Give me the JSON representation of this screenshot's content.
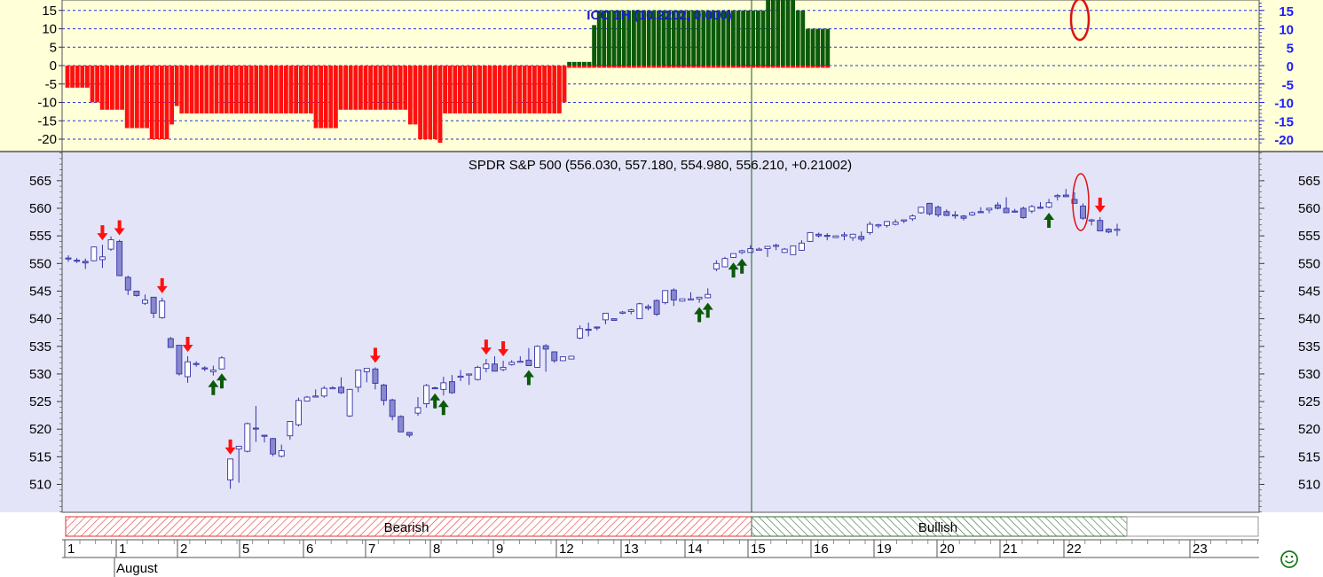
{
  "chart_data": [
    {
      "type": "bar",
      "title": "ICC 1H (10.2202, 0.000)",
      "ylim": [
        -22,
        17
      ],
      "yticks": [
        15,
        10,
        5,
        0,
        -5,
        -10,
        -15,
        -20
      ],
      "right_ticks": [
        "15",
        "10",
        "5",
        "0",
        "-5",
        "-10",
        "-15",
        "-20"
      ],
      "left_ticks": [
        "15",
        "10",
        "5",
        "0",
        "-5",
        "-10",
        "-15",
        "-20"
      ],
      "grid": true,
      "colors": {
        "negative": "#ff1010",
        "positive": "#0a5a0a",
        "background": "#ffffd8"
      },
      "values": [
        -6,
        -6,
        -6,
        -6,
        -6,
        -10,
        -10,
        -12,
        -12,
        -12,
        -12,
        -12,
        -17,
        -17,
        -17,
        -17,
        -17,
        -20,
        -20,
        -20,
        -20,
        -16,
        -11,
        -13,
        -13,
        -13,
        -13,
        -13,
        -13,
        -13,
        -13,
        -13,
        -13,
        -13,
        -13,
        -13,
        -13,
        -13,
        -13,
        -13,
        -13,
        -13,
        -13,
        -13,
        -13,
        -13,
        -13,
        -13,
        -13,
        -13,
        -17,
        -17,
        -17,
        -17,
        -17,
        -12,
        -12,
        -12,
        -12,
        -12,
        -12,
        -12,
        -12,
        -12,
        -12,
        -12,
        -12,
        -12,
        -12,
        -16,
        -16,
        -20,
        -20,
        -20,
        -20,
        -21,
        -13,
        -13,
        -13,
        -13,
        -13,
        -13,
        -13,
        -13,
        -13,
        -13,
        -13,
        -13,
        -13,
        -13,
        -13,
        -13,
        -13,
        -13,
        -13,
        -13,
        -13,
        -13,
        -13,
        -13,
        -10,
        1,
        1,
        1,
        1,
        1,
        11,
        15,
        15,
        15,
        15,
        15,
        15,
        15,
        15,
        15,
        15,
        15,
        15,
        15,
        15,
        15,
        15,
        15,
        15,
        15,
        15,
        15,
        15,
        15,
        15,
        15,
        15,
        15,
        15,
        15,
        15,
        15,
        15,
        15,
        15,
        18,
        18,
        18,
        18,
        18,
        18,
        15,
        15,
        10,
        10,
        10,
        10,
        10
      ]
    },
    {
      "type": "candlestick",
      "title": "SPDR S&P 500 (556.030, 557.180, 554.980, 556.210, +0.21002)",
      "ylim": [
        504,
        570
      ],
      "yticks": [
        565,
        560,
        555,
        550,
        545,
        540,
        535,
        530,
        525,
        520,
        515,
        510
      ],
      "tick_labels": [
        "565",
        "560",
        "555",
        "550",
        "545",
        "540",
        "535",
        "530",
        "525",
        "520",
        "515",
        "510"
      ],
      "grid": false,
      "colors": {
        "up": "#ffffff",
        "down": "#8888cc",
        "outline": "#3333aa",
        "background": "#e4e4f8"
      },
      "ohlc": [
        [
          551,
          551.5,
          550.3,
          550.8
        ],
        [
          550.6,
          551,
          550.1,
          550.4
        ],
        [
          550.4,
          550.9,
          549,
          550.1
        ],
        [
          550.5,
          553,
          550.4,
          553
        ],
        [
          550.7,
          553.4,
          549.2,
          551.2
        ],
        [
          552.6,
          554.9,
          552.3,
          554.3
        ],
        [
          554,
          554.3,
          547.8,
          547.8
        ],
        [
          547.5,
          547.8,
          544.3,
          545.2
        ],
        [
          545,
          545,
          544,
          544.2
        ],
        [
          542.8,
          544.4,
          542.5,
          543.4
        ],
        [
          543.9,
          543.9,
          540.1,
          541
        ],
        [
          540.2,
          543.8,
          540,
          543.2
        ],
        [
          536.4,
          536.7,
          534.8,
          534.8
        ],
        [
          535.2,
          535.2,
          529.7,
          530
        ],
        [
          529.5,
          533.2,
          528.4,
          532.2
        ],
        [
          531.9,
          532.3,
          531.3,
          531.7
        ],
        [
          531.1,
          531.4,
          530.5,
          530.9
        ],
        [
          530.4,
          531.5,
          529.7,
          530.7
        ],
        [
          530.9,
          533.2,
          530.9,
          532.9
        ],
        [
          510.8,
          514.6,
          509.2,
          514.6
        ],
        [
          516.4,
          516.9,
          510.3,
          516.9
        ],
        [
          516,
          521.2,
          515.8,
          521
        ],
        [
          520.2,
          524.2,
          517.7,
          520.1
        ],
        [
          518.9,
          519,
          517.6,
          518.8
        ],
        [
          518.3,
          518.4,
          515.1,
          515.5
        ],
        [
          515.1,
          517.2,
          514.9,
          516.1
        ],
        [
          518.8,
          521.4,
          518.1,
          521.4
        ],
        [
          520.8,
          525.7,
          520.5,
          525.2
        ],
        [
          525.1,
          526,
          525.1,
          525.8
        ],
        [
          526,
          527.2,
          526,
          526
        ],
        [
          526,
          527.8,
          525.7,
          527.4
        ],
        [
          527.4,
          527.8,
          527.4,
          527.5
        ],
        [
          527.6,
          529.4,
          526.4,
          526.6
        ],
        [
          522.4,
          527.3,
          522.2,
          527.2
        ],
        [
          527.6,
          530.7,
          526.7,
          530.7
        ],
        [
          530.4,
          531,
          528.5,
          531
        ],
        [
          530.9,
          531.2,
          527.2,
          528.3
        ],
        [
          528,
          528.2,
          524.3,
          525.2
        ],
        [
          525.3,
          525.5,
          521.6,
          522.3
        ],
        [
          522.3,
          522.5,
          519.5,
          519.5
        ],
        [
          519.4,
          519.5,
          518.5,
          518.9
        ],
        [
          522.9,
          525.8,
          522.4,
          523.9
        ],
        [
          524.6,
          528.2,
          523.9,
          527.9
        ],
        [
          527.5,
          527.7,
          527.3,
          527.4
        ],
        [
          527.2,
          529.5,
          526.1,
          528.4
        ],
        [
          528.6,
          529.8,
          526.4,
          526.6
        ],
        [
          529.6,
          530.7,
          528.7,
          529.6
        ],
        [
          529.8,
          530,
          528,
          530
        ],
        [
          529,
          531.5,
          528.8,
          531.2
        ],
        [
          531,
          532.7,
          530.3,
          531.8
        ],
        [
          531.8,
          533.2,
          530.5,
          530.5
        ],
        [
          530.8,
          532.4,
          530.5,
          531.2
        ],
        [
          531.7,
          532.5,
          531.5,
          532.1
        ],
        [
          532.3,
          533.2,
          532.2,
          532.3
        ],
        [
          532.5,
          534.7,
          531.5,
          531.5
        ],
        [
          531.2,
          535.2,
          531.1,
          535
        ],
        [
          535.1,
          535.4,
          530.4,
          534.5
        ],
        [
          534,
          534.1,
          532,
          532.4
        ],
        [
          532.4,
          533.2,
          532.4,
          533.1
        ],
        [
          532.7,
          533.3,
          532.7,
          533.2
        ],
        [
          536.5,
          538.8,
          536.3,
          538.2
        ],
        [
          538.1,
          539.3,
          536.8,
          537.9
        ],
        [
          538.5,
          538.6,
          537.9,
          538.4
        ],
        [
          539.8,
          541,
          539,
          541
        ],
        [
          540,
          540,
          539.7,
          539.7
        ],
        [
          541,
          541.4,
          540.8,
          541.2
        ],
        [
          541.3,
          541.8,
          540.8,
          541.6
        ],
        [
          540,
          542.9,
          540,
          542.7
        ],
        [
          542.2,
          542.6,
          541.5,
          541.9
        ],
        [
          543.3,
          543.5,
          540.5,
          540.8
        ],
        [
          542.9,
          545.1,
          542.6,
          545.1
        ],
        [
          545.2,
          545.5,
          542.3,
          543.4
        ],
        [
          543.2,
          543.6,
          543.1,
          543.6
        ],
        [
          543.5,
          544.8,
          543.4,
          543.6
        ],
        [
          543.6,
          543.9,
          542.9,
          543.9
        ],
        [
          543.8,
          545.5,
          543.7,
          544.4
        ],
        [
          549,
          550.6,
          548.6,
          550
        ],
        [
          549.4,
          551.2,
          549.3,
          550.9
        ],
        [
          551.1,
          551.8,
          551,
          551.8
        ],
        [
          552,
          552.5,
          551.7,
          552.3
        ],
        [
          552,
          553.3,
          552,
          552.7
        ],
        [
          552.5,
          552.9,
          552.4,
          552.6
        ],
        [
          552.7,
          553.1,
          551.2,
          553.1
        ],
        [
          553.2,
          553.6,
          552.4,
          553.3
        ],
        [
          552,
          552.8,
          551.9,
          552.6
        ],
        [
          551.6,
          553.2,
          551.6,
          553.2
        ],
        [
          552.4,
          554.2,
          552.3,
          553.7
        ],
        [
          554,
          555.7,
          553.9,
          555.6
        ],
        [
          555.3,
          555.6,
          554.7,
          555
        ],
        [
          555.1,
          555.5,
          554.2,
          555
        ],
        [
          554.7,
          555.1,
          554.6,
          555
        ],
        [
          555,
          555.7,
          554.2,
          555.2
        ],
        [
          554.7,
          555.4,
          554.1,
          555.3
        ],
        [
          554.9,
          555.8,
          554,
          554.4
        ],
        [
          555.6,
          557.6,
          555.2,
          557.1
        ],
        [
          557,
          557.2,
          556.4,
          557
        ],
        [
          556.9,
          557.7,
          556.5,
          557.6
        ],
        [
          557.1,
          558,
          556.9,
          557.5
        ],
        [
          557.7,
          557.9,
          557.3,
          557.9
        ],
        [
          558.1,
          558.9,
          557.7,
          558.6
        ],
        [
          559.2,
          560.2,
          559,
          560.2
        ],
        [
          560.9,
          561,
          558.7,
          559
        ],
        [
          560.2,
          560.5,
          558.4,
          558.8
        ],
        [
          559.4,
          559.8,
          558.6,
          558.7
        ],
        [
          558.7,
          559.5,
          558.1,
          558.8
        ],
        [
          558.6,
          558.8,
          557.8,
          558.2
        ],
        [
          558.8,
          559.4,
          558.6,
          559.2
        ],
        [
          559.4,
          560.2,
          559.2,
          559.2
        ],
        [
          559.7,
          560.1,
          559.1,
          560
        ],
        [
          560.6,
          561.1,
          559.8,
          560
        ],
        [
          560,
          562,
          559.2,
          559.2
        ],
        [
          559.5,
          559.9,
          559.2,
          559.3
        ],
        [
          560,
          560.3,
          558.1,
          558.3
        ],
        [
          559.5,
          560.6,
          559.1,
          560.3
        ],
        [
          560.2,
          561.1,
          559.9,
          560.1
        ],
        [
          560.2,
          561.7,
          560,
          561
        ],
        [
          562.3,
          562.6,
          561.4,
          562.3
        ],
        [
          562.4,
          563.5,
          562,
          562.1
        ],
        [
          561.6,
          562.9,
          560.9,
          560.9
        ],
        [
          560.4,
          560.9,
          557.9,
          558.2
        ],
        [
          557.8,
          558.1,
          556.9,
          557.9
        ],
        [
          557.8,
          558.4,
          556,
          555.9
        ],
        [
          556.2,
          556.4,
          555.5,
          555.7
        ],
        [
          556,
          557.2,
          555,
          556.2
        ]
      ],
      "signals": [
        {
          "bar": 4,
          "dir": "down"
        },
        {
          "bar": 6,
          "dir": "down"
        },
        {
          "bar": 11,
          "dir": "down"
        },
        {
          "bar": 14,
          "dir": "down"
        },
        {
          "bar": 17,
          "dir": "up"
        },
        {
          "bar": 18,
          "dir": "up"
        },
        {
          "bar": 19,
          "dir": "down"
        },
        {
          "bar": 36,
          "dir": "down"
        },
        {
          "bar": 43,
          "dir": "up"
        },
        {
          "bar": 44,
          "dir": "up"
        },
        {
          "bar": 49,
          "dir": "down"
        },
        {
          "bar": 51,
          "dir": "down"
        },
        {
          "bar": 54,
          "dir": "up"
        },
        {
          "bar": 74,
          "dir": "up"
        },
        {
          "bar": 75,
          "dir": "up"
        },
        {
          "bar": 78,
          "dir": "up"
        },
        {
          "bar": 79,
          "dir": "up"
        },
        {
          "bar": 115,
          "dir": "up"
        },
        {
          "bar": 121,
          "dir": "down"
        }
      ]
    },
    {
      "type": "band",
      "segments": [
        {
          "label": "Bearish",
          "from": "1",
          "to": "15",
          "pattern": "red-hatch"
        },
        {
          "label": "Bullish",
          "from": "15",
          "to": "22",
          "pattern": "green-hatch"
        }
      ]
    }
  ],
  "x_axis": {
    "dates": [
      {
        "label": "1",
        "x": 73
      },
      {
        "label": "1",
        "x": 131
      },
      {
        "label": "2",
        "x": 200
      },
      {
        "label": "5",
        "x": 270
      },
      {
        "label": "6",
        "x": 342
      },
      {
        "label": "7",
        "x": 412
      },
      {
        "label": "8",
        "x": 485
      },
      {
        "label": "9",
        "x": 556
      },
      {
        "label": "12",
        "x": 627
      },
      {
        "label": "13",
        "x": 700
      },
      {
        "label": "14",
        "x": 772
      },
      {
        "label": "15",
        "x": 843
      },
      {
        "label": "16",
        "x": 914
      },
      {
        "label": "19",
        "x": 985
      },
      {
        "label": "20",
        "x": 1056
      },
      {
        "label": "21",
        "x": 1127
      },
      {
        "label": "22",
        "x": 1199
      },
      {
        "label": "23",
        "x": 1341
      }
    ],
    "month_label": "August"
  },
  "status_icon": "smiley-icon",
  "smiley_glyph": "☺"
}
